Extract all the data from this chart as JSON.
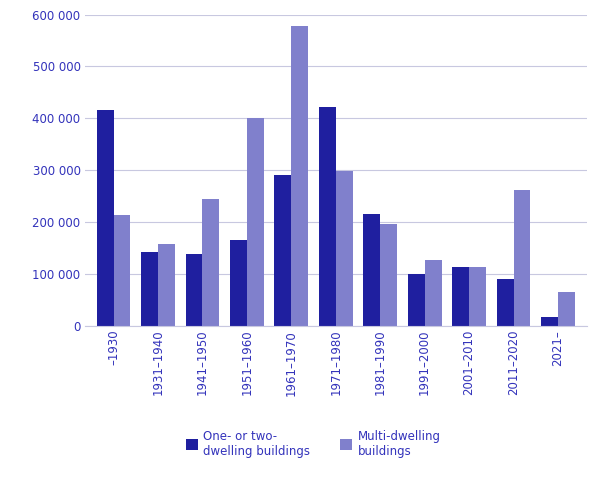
{
  "categories": [
    "–1930",
    "1931–1940",
    "1941–1950",
    "1951–1960",
    "1961–1970",
    "1971–1980",
    "1981–1990",
    "1991–2000",
    "2001–2010",
    "2011–2020",
    "2021–"
  ],
  "one_two_dwelling": [
    415000,
    142000,
    138000,
    165000,
    290000,
    422000,
    215000,
    100000,
    113000,
    90000,
    17000
  ],
  "multi_dwelling": [
    213000,
    158000,
    244000,
    400000,
    578000,
    298000,
    196000,
    127000,
    113000,
    262000,
    65000
  ],
  "color_one_two": "#1f1f9f",
  "color_multi": "#8080cc",
  "tick_color": "#3333bb",
  "grid_color": "#c8c8e0",
  "background_color": "#ffffff",
  "ylim": [
    0,
    600000
  ],
  "yticks": [
    0,
    100000,
    200000,
    300000,
    400000,
    500000,
    600000
  ],
  "legend_one_two": "One- or two-\ndwelling buildings",
  "legend_multi": "Multi-dwelling\nbuildings",
  "bar_width": 0.38
}
